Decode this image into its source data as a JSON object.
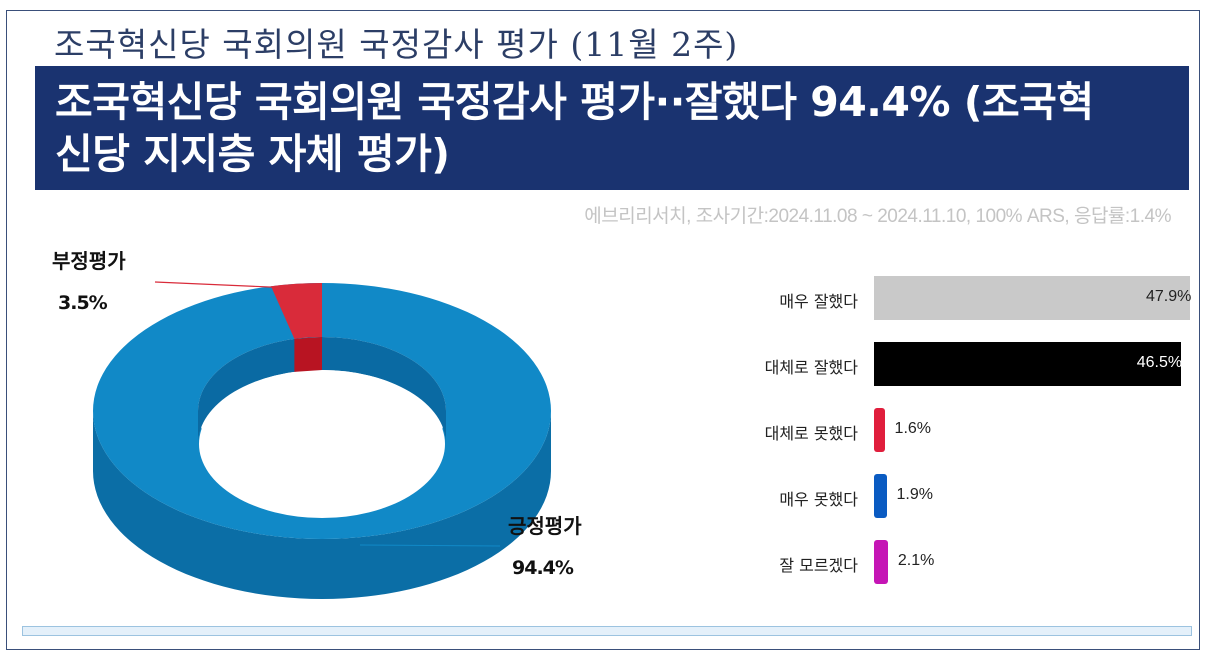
{
  "header": {
    "top_title": "조국혁신당 국회의원 국정감사 평가 (11월 2주)",
    "banner_line1": "조국혁신당 국회의원 국정감사 평가··잘했다 94.4% (조국혁",
    "banner_line2": "신당 지지층 자체 평가)",
    "source": "에브리리서치, 조사기간:2024.11.08 ~ 2024.11.10, 100% ARS, 응답률:1.4%"
  },
  "chart_data": [
    {
      "type": "pie",
      "variant": "donut-3d",
      "slices": [
        {
          "name": "긍정평가",
          "value": 94.4,
          "value_label": "94.4%",
          "color": "#1189c7"
        },
        {
          "name": "부정평가",
          "value": 3.5,
          "value_label": "3.5%",
          "color": "#d92b3a"
        }
      ]
    },
    {
      "type": "bar",
      "orientation": "horizontal",
      "categories": [
        "매우 잘했다",
        "대체로 잘했다",
        "대체로 못했다",
        "매우 못했다",
        "잘 모르겠다"
      ],
      "values": [
        47.9,
        46.5,
        1.6,
        1.9,
        2.1
      ],
      "value_labels": [
        "47.9%",
        "46.5%",
        "1.6%",
        "1.9%",
        "2.1%"
      ],
      "colors": [
        "#c9c9c9",
        "#000000",
        "#e01e3c",
        "#0a5bc2",
        "#c515b5"
      ]
    }
  ]
}
